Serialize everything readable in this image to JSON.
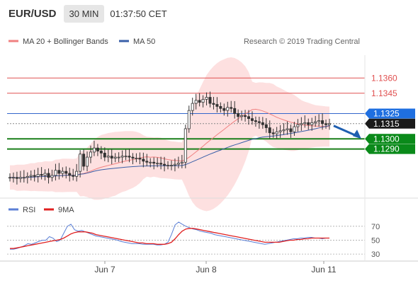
{
  "header": {
    "symbol": "EUR/USD",
    "timeframe": "30 MIN",
    "time": "01:37:50 CET"
  },
  "legend": {
    "bollinger_label": "MA 20 + Bollinger Bands",
    "ma50_label": "MA 50",
    "credit": "Research © 2019 Trading Central"
  },
  "colors": {
    "price_up": "#333333",
    "price_down": "#333333",
    "ma20": "#f08080",
    "bollinger_fill": "#fde0e0",
    "ma50": "#3a5fa8",
    "resistance": "#e05050",
    "support": "#1a7f1a",
    "pivot": "#3366cc",
    "forecast": "#1f5fb0",
    "rsi": "#5b7fd6",
    "rsi_ma": "#e02020",
    "price_tag": "#1f6fe0",
    "support_tag": "#0a8a1a"
  },
  "chart_data": [
    {
      "type": "candlestick",
      "title": "",
      "ylim": [
        1.1243,
        1.1386
      ],
      "x_ticks": [
        "Jun 7",
        "Jun 8",
        "Jun 11"
      ],
      "levels": [
        {
          "label": "1.1360",
          "value": 1.136,
          "kind": "resistance"
        },
        {
          "label": "1.1345",
          "value": 1.1345,
          "kind": "resistance"
        },
        {
          "label": "1.1325",
          "value": 1.1325,
          "kind": "pivot"
        },
        {
          "label": "1.1315",
          "value": 1.1315,
          "kind": "last"
        },
        {
          "label": "1.1300",
          "value": 1.13,
          "kind": "support"
        },
        {
          "label": "1.1290",
          "value": 1.129,
          "kind": "support"
        }
      ],
      "series": [
        {
          "name": "MA 20 + Bollinger Bands"
        },
        {
          "name": "MA 50"
        }
      ],
      "close_path": [
        1.1262,
        1.1262,
        1.1261,
        1.1262,
        1.1262,
        1.1263,
        1.1264,
        1.1263,
        1.1265,
        1.1264,
        1.1266,
        1.1262,
        1.1264,
        1.1269,
        1.1266,
        1.1268,
        1.1266,
        1.1264,
        1.1263,
        1.1268,
        1.1285,
        1.1273,
        1.1282,
        1.1287,
        1.1291,
        1.1288,
        1.1286,
        1.1282,
        1.1283,
        1.1281,
        1.1282,
        1.1282,
        1.1283,
        1.1283,
        1.1282,
        1.1281,
        1.1281,
        1.128,
        1.1278,
        1.1277,
        1.1277,
        1.1276,
        1.1276,
        1.1275,
        1.1274,
        1.1274,
        1.1274,
        1.1275,
        1.1276,
        1.1277,
        1.131,
        1.1328,
        1.1335,
        1.1338,
        1.1336,
        1.1339,
        1.1341,
        1.1335,
        1.1334,
        1.1332,
        1.133,
        1.1328,
        1.1331,
        1.133,
        1.1325,
        1.1322,
        1.1323,
        1.1322,
        1.132,
        1.1318,
        1.1317,
        1.1316,
        1.1314,
        1.1311,
        1.1306,
        1.1305,
        1.1307,
        1.1308,
        1.1309,
        1.131,
        1.1307,
        1.1312,
        1.1314,
        1.1315,
        1.1316,
        1.1314,
        1.1316,
        1.1317,
        1.1318,
        1.1315,
        1.1314,
        1.1315
      ],
      "forecast_to": 1.13
    },
    {
      "type": "line",
      "title": "",
      "ylim": [
        25,
        80
      ],
      "y_ticks": [
        30,
        50,
        70
      ],
      "series": [
        {
          "name": "RSI",
          "values": [
            37,
            37,
            38,
            40,
            42,
            45,
            44,
            46,
            48,
            50,
            50,
            55,
            53,
            48,
            50,
            60,
            70,
            73,
            65,
            63,
            64,
            62,
            60,
            58,
            56,
            55,
            54,
            53,
            52,
            51,
            50,
            48,
            47,
            46,
            45,
            45,
            45,
            44,
            44,
            44,
            44,
            43,
            43,
            44,
            47,
            58,
            72,
            76,
            73,
            70,
            68,
            66,
            65,
            63,
            62,
            61,
            60,
            58,
            57,
            56,
            55,
            54,
            53,
            52,
            51,
            50,
            49,
            48,
            47,
            46,
            45,
            44,
            45,
            46,
            47,
            48,
            49,
            50,
            51,
            52,
            52,
            53,
            53,
            54,
            54,
            53,
            53,
            52,
            53,
            53
          ]
        },
        {
          "name": "9MA",
          "values": [
            38,
            38,
            39,
            40,
            41,
            42,
            43,
            44,
            45,
            46,
            47,
            48,
            49,
            50,
            51,
            53,
            56,
            59,
            61,
            62,
            62,
            62,
            61,
            60,
            58,
            57,
            56,
            55,
            54,
            53,
            52,
            51,
            50,
            49,
            48,
            47,
            46,
            46,
            45,
            45,
            45,
            44,
            44,
            44,
            45,
            47,
            52,
            58,
            63,
            66,
            67,
            67,
            66,
            65,
            64,
            63,
            62,
            61,
            60,
            59,
            58,
            57,
            56,
            55,
            54,
            53,
            52,
            51,
            50,
            49,
            48,
            47,
            47,
            47,
            47,
            47,
            48,
            49,
            50,
            50,
            51,
            51,
            52,
            52,
            53,
            53,
            53,
            53,
            53,
            53
          ]
        }
      ]
    }
  ]
}
